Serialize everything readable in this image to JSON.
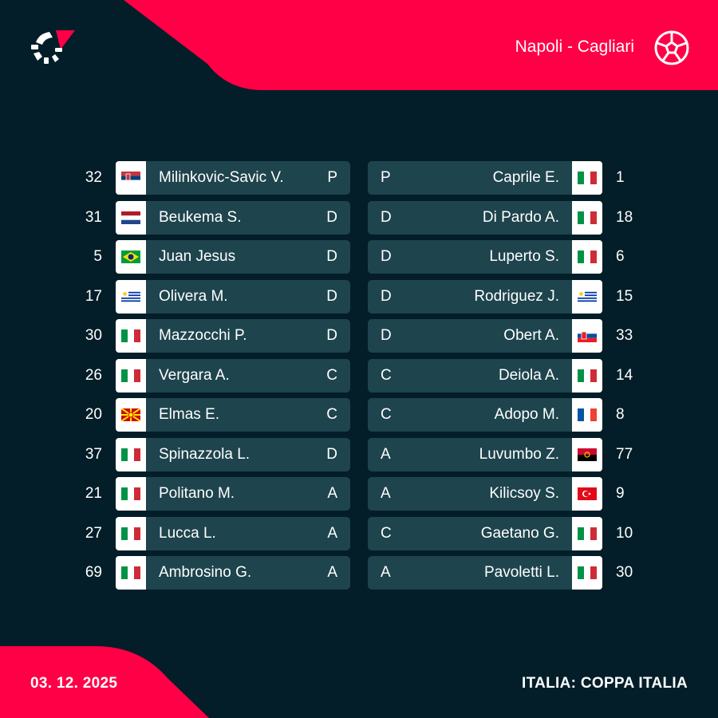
{
  "header": {
    "match": "Napoli - Cagliari",
    "icon": "football-icon",
    "accent": "#ff0046"
  },
  "home": [
    {
      "num": "32",
      "flag": "serbia",
      "name": "Milinkovic-Savic V.",
      "pos": "P"
    },
    {
      "num": "31",
      "flag": "netherlands",
      "name": "Beukema S.",
      "pos": "D"
    },
    {
      "num": "5",
      "flag": "brazil",
      "name": "Juan Jesus",
      "pos": "D"
    },
    {
      "num": "17",
      "flag": "uruguay",
      "name": "Olivera M.",
      "pos": "D"
    },
    {
      "num": "30",
      "flag": "italy",
      "name": "Mazzocchi P.",
      "pos": "D"
    },
    {
      "num": "26",
      "flag": "italy",
      "name": "Vergara A.",
      "pos": "C"
    },
    {
      "num": "20",
      "flag": "north-macedonia",
      "name": "Elmas E.",
      "pos": "C"
    },
    {
      "num": "37",
      "flag": "italy",
      "name": "Spinazzola L.",
      "pos": "D"
    },
    {
      "num": "21",
      "flag": "italy",
      "name": "Politano M.",
      "pos": "A"
    },
    {
      "num": "27",
      "flag": "italy",
      "name": "Lucca L.",
      "pos": "A"
    },
    {
      "num": "69",
      "flag": "italy",
      "name": "Ambrosino G.",
      "pos": "A"
    }
  ],
  "away": [
    {
      "num": "1",
      "flag": "italy",
      "name": "Caprile E.",
      "pos": "P"
    },
    {
      "num": "18",
      "flag": "italy",
      "name": "Di Pardo A.",
      "pos": "D"
    },
    {
      "num": "6",
      "flag": "italy",
      "name": "Luperto S.",
      "pos": "D"
    },
    {
      "num": "15",
      "flag": "uruguay",
      "name": "Rodriguez J.",
      "pos": "D"
    },
    {
      "num": "33",
      "flag": "slovakia",
      "name": "Obert A.",
      "pos": "D"
    },
    {
      "num": "14",
      "flag": "italy",
      "name": "Deiola A.",
      "pos": "C"
    },
    {
      "num": "8",
      "flag": "france",
      "name": "Adopo M.",
      "pos": "C"
    },
    {
      "num": "77",
      "flag": "angola",
      "name": "Luvumbo Z.",
      "pos": "A"
    },
    {
      "num": "9",
      "flag": "turkey",
      "name": "Kilicsoy S.",
      "pos": "A"
    },
    {
      "num": "10",
      "flag": "italy",
      "name": "Gaetano G.",
      "pos": "C"
    },
    {
      "num": "30",
      "flag": "italy",
      "name": "Pavoletti L.",
      "pos": "A"
    }
  ],
  "footer": {
    "date": "03. 12. 2025",
    "competition": "ITALIA: COPPA ITALIA"
  }
}
